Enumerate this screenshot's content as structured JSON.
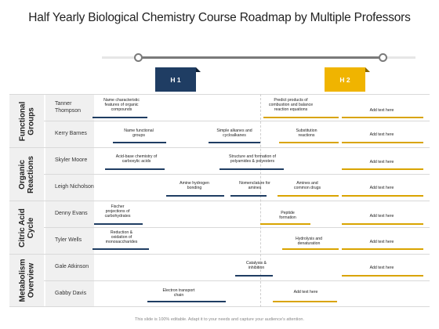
{
  "title": "Half Yearly Biological Chemistry Course Roadmap by Multiple Professors",
  "halves": [
    "H 1",
    "H 2"
  ],
  "groups": [
    {
      "label": "Functional Groups",
      "line1": "Functional",
      "line2": "Groups"
    },
    {
      "label": "Organic Reactions",
      "line1": "Organic",
      "line2": "Reactions"
    },
    {
      "label": "Citric Acid Cycle",
      "line1": "Citric Acid",
      "line2": "Cycle"
    },
    {
      "label": "Metabolism Overview",
      "line1": "Metabolism",
      "line2": "Overview"
    }
  ],
  "rows": [
    {
      "professor": "Tanner\nThompson",
      "tasks": [
        {
          "text": "Name characteristic\nfeatures of organic\ncompounds",
          "color": "navy"
        },
        {
          "text": "Predict products of\ncombustion and balance\nreaction equations",
          "color": "gold"
        },
        {
          "text": "Add text here",
          "color": "gold"
        }
      ]
    },
    {
      "professor": "Kerry Barnes",
      "tasks": [
        {
          "text": "Name functional\ngroups",
          "color": "navy"
        },
        {
          "text": "Simple alkanes and\ncycloalkanes",
          "color": "navy"
        },
        {
          "text": "Substitution\nreactions",
          "color": "gold"
        },
        {
          "text": "Add text here",
          "color": "gold"
        }
      ]
    },
    {
      "professor": "Skyler Moore",
      "tasks": [
        {
          "text": "Acid-base chemistry of\ncarboxylic acids",
          "color": "navy"
        },
        {
          "text": "Structure and formation of\npolyamides & polyesters",
          "color": "navy"
        },
        {
          "text": "Add text here",
          "color": "gold"
        }
      ]
    },
    {
      "professor": "Leigh Nicholson",
      "tasks": [
        {
          "text": "Amine hydrogen\nbonding",
          "color": "navy"
        },
        {
          "text": "Nomenclature for\namines",
          "color": "navy"
        },
        {
          "text": "Amines and\ncommon drugs",
          "color": "gold"
        },
        {
          "text": "Add text here",
          "color": "gold"
        }
      ]
    },
    {
      "professor": "Denny Evans",
      "tasks": [
        {
          "text": "Fischer\nprojections of\ncarbohydrates",
          "color": "navy"
        },
        {
          "text": "Peptide\nformation",
          "color": "gold"
        },
        {
          "text": "Add text here",
          "color": "gold"
        }
      ]
    },
    {
      "professor": "Tyler Wells",
      "tasks": [
        {
          "text": "Reduction &\noxidation of\nmonosaccharides",
          "color": "navy"
        },
        {
          "text": "Hydrolysis and\ndenaturation",
          "color": "gold"
        },
        {
          "text": "Add text here",
          "color": "gold"
        }
      ]
    },
    {
      "professor": "Gale Atkinson",
      "tasks": [
        {
          "text": "Catalysis &\ninhibition",
          "color": "navy"
        },
        {
          "text": "Add text here",
          "color": "gold"
        }
      ]
    },
    {
      "professor": "Gabby Davis",
      "tasks": [
        {
          "text": "Electron transport\nchain",
          "color": "navy"
        },
        {
          "text": "Add text here",
          "color": "gold"
        }
      ]
    }
  ],
  "footer": "This slide is 100% editable. Adapt it to your needs and capture your audience's attention.",
  "colors": {
    "navy": "#1f3d63",
    "gold": "#d9a400",
    "h1": "#1f3d63",
    "h2": "#f0b400"
  }
}
